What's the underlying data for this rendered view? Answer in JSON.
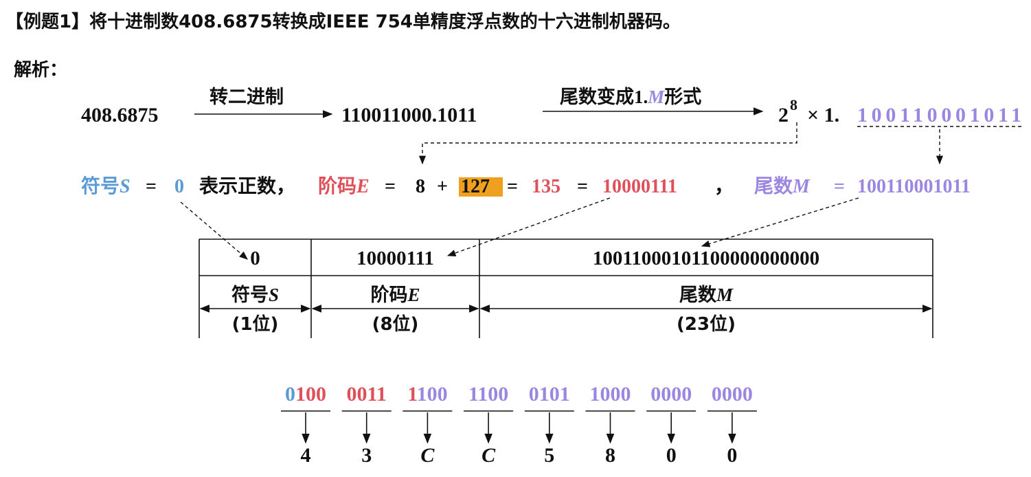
{
  "title": "【例题1】将十进制数408.6875转换成IEEE 754单精度浮点数的十六进制机器码。",
  "analysis_label": "解析：",
  "row1": {
    "decimal": "408.6875",
    "step1": "转二进制",
    "binary": "110011000.1011",
    "step2": [
      "尾数变成",
      "1.",
      "M",
      "形式"
    ],
    "base": "2",
    "exponent": "8",
    "times": "× 1.",
    "mantissa": "100110001011"
  },
  "row2": {
    "sign_label": "符号",
    "sign_var": "S",
    "eq1": "=",
    "sign_value": "0",
    "sign_note": "表示正数，",
    "exp_label": "阶码",
    "exp_var": "E",
    "eq2": "=",
    "exp_value": "8",
    "plus": "+",
    "bias": "127",
    "eq3": "=",
    "biased": "135",
    "eq4": "=",
    "exp_binary": "10000111",
    "comma": "，",
    "mant_label": "尾数",
    "mant_var": "M",
    "eq5": "=",
    "mantissa": "100110001011"
  },
  "table": {
    "columns": [
      {
        "value": "0",
        "label": "符号",
        "var": "S",
        "width": "(1位)",
        "color": "#5b9bd5"
      },
      {
        "value": "10000111",
        "label": "阶码",
        "var": "E",
        "width": "(8位)",
        "color": "#e0505a"
      },
      {
        "value": "10011000101100000000000",
        "label": "尾数",
        "var": "M",
        "width": "(23位)",
        "color": "#9b87e0"
      }
    ]
  },
  "hex": {
    "groups": [
      {
        "parts": [
          {
            "text": "0",
            "color": "#5b9bd5"
          },
          {
            "text": "100",
            "color": "#e0505a"
          }
        ],
        "digit": "4"
      },
      {
        "parts": [
          {
            "text": "0011",
            "color": "#e0505a"
          }
        ],
        "digit": "3"
      },
      {
        "parts": [
          {
            "text": "1",
            "color": "#e0505a"
          },
          {
            "text": "100",
            "color": "#9b87e0"
          }
        ],
        "digit": "C"
      },
      {
        "parts": [
          {
            "text": "1100",
            "color": "#9b87e0"
          }
        ],
        "digit": "C"
      },
      {
        "parts": [
          {
            "text": "0101",
            "color": "#9b87e0"
          }
        ],
        "digit": "5"
      },
      {
        "parts": [
          {
            "text": "1000",
            "color": "#9b87e0"
          }
        ],
        "digit": "8"
      },
      {
        "parts": [
          {
            "text": "0000",
            "color": "#9b87e0"
          }
        ],
        "digit": "0"
      },
      {
        "parts": [
          {
            "text": "0000",
            "color": "#9b87e0"
          }
        ],
        "digit": "0"
      }
    ]
  }
}
